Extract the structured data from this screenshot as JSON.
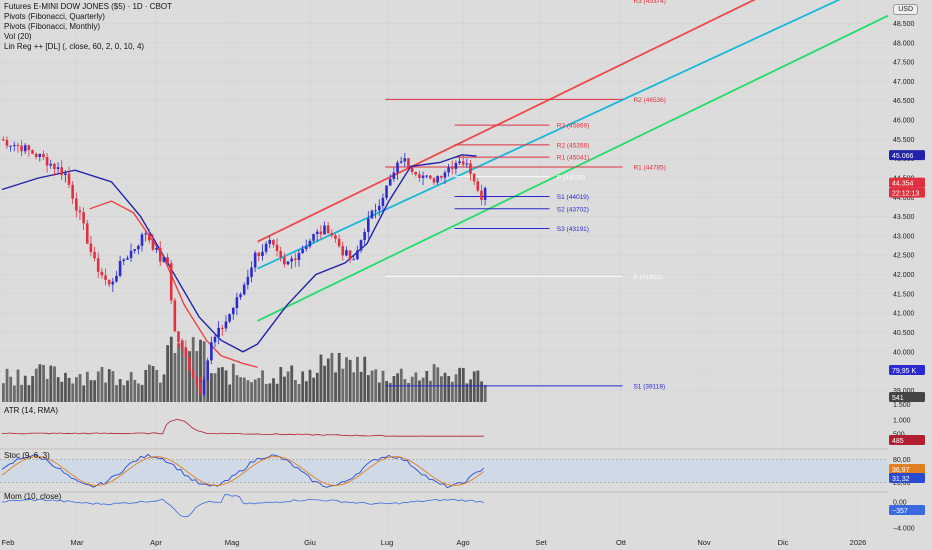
{
  "header": {
    "title": "Futures E-MINI DOW JONES ($5) · 1D · CBOT",
    "indicators": [
      "Pivots (Fibonacci, Quarterly)",
      "Pivots (Fibonacci, Monthly)",
      "Vol (20)",
      "Lin Reg ++ [DL] (, close, 60, 2, 0, 10, 4)"
    ],
    "currency": "USD"
  },
  "panes": {
    "atr_label": "ATR (14, RMA)",
    "stoch_label": "Stoc (9, 6, 3)",
    "mom_label": "Mom (10, close)"
  },
  "colors": {
    "background": "#dcdcdc",
    "up": "#2b2bd1",
    "down": "#e0303f",
    "reg_top": "#f04848",
    "reg_mid": "#1ab8d8",
    "reg_bot": "#22dd66",
    "ma_blue": "#2222aa",
    "ma_red": "#ee4444",
    "pivot_red": "#e03040",
    "pivot_blue": "#2a2ad0",
    "pivot_white": "#ffffff"
  },
  "chart_data": {
    "type": "candlestick",
    "price_axis_ticks": [
      "48.500",
      "48.000",
      "47.500",
      "47.000",
      "46.500",
      "46.000",
      "45.500",
      "45.000",
      "44.500",
      "44.000",
      "43.500",
      "43.000",
      "42.500",
      "42.000",
      "41.500",
      "41.000",
      "40.500",
      "40.000",
      "39.500",
      "39.000",
      "1.500"
    ],
    "price_range": [
      38700,
      48900
    ],
    "x_ticks": [
      "Feb",
      "Mar",
      "Apr",
      "Mag",
      "Giu",
      "Lug",
      "Ago",
      "Set",
      "Ott",
      "Nov",
      "Dic",
      "2026"
    ],
    "badges": {
      "ma_value": "45.066",
      "last_price": "44.354",
      "countdown": "22:12:13",
      "volume": "79,95 K",
      "vol_small": "541",
      "atr_value": "485",
      "stoch_k": "36,97",
      "stoch_d": "31,32",
      "mom_value": "−357"
    },
    "pivots_monthly": [
      {
        "label": "R3 (45869)",
        "value": 45869,
        "color": "red"
      },
      {
        "label": "R2 (45358)",
        "value": 45358,
        "color": "red"
      },
      {
        "label": "R1 (45041)",
        "value": 45041,
        "color": "red"
      },
      {
        "label": "P (44530)",
        "value": 44530,
        "color": "white"
      },
      {
        "label": "S1 (44019)",
        "value": 44019,
        "color": "blue"
      },
      {
        "label": "S2 (43702)",
        "value": 43702,
        "color": "blue"
      },
      {
        "label": "S3 (43191)",
        "value": 43191,
        "color": "blue"
      }
    ],
    "pivots_quarterly": [
      {
        "label": "R3 (49374)",
        "value": 49374,
        "color": "red"
      },
      {
        "label": "R2 (46536)",
        "value": 46536,
        "color": "red"
      },
      {
        "label": "R1 (44785)",
        "value": 44785,
        "color": "red"
      },
      {
        "label": "P (41952)",
        "value": 41952,
        "color": "white"
      },
      {
        "label": "S1 (39118)",
        "value": 39118,
        "color": "blue"
      }
    ],
    "atr_ticks": [
      "1.000",
      "500"
    ],
    "atr_range": [
      0,
      1600
    ],
    "stoch_ticks": [
      "80,00",
      "20,00"
    ],
    "mom_ticks": [
      "0,00",
      "−4.000"
    ],
    "mom_range": [
      -4600,
      1200
    ]
  }
}
